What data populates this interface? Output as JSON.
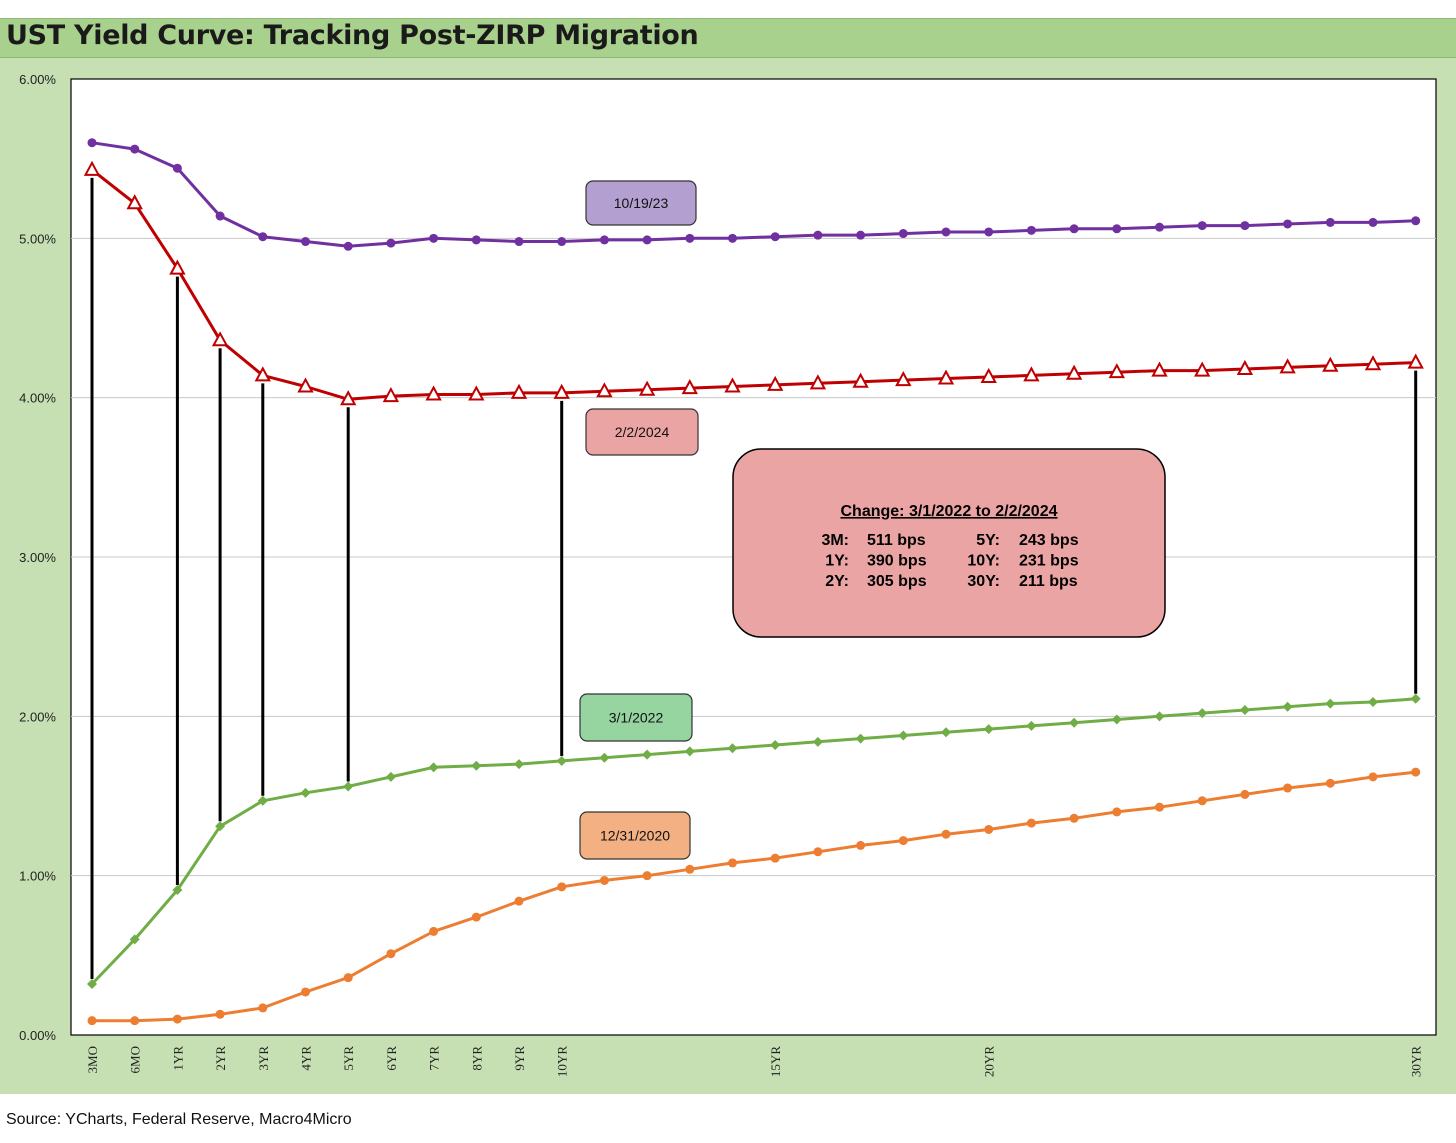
{
  "title": "UST Yield Curve: Tracking Post-ZIRP Migration",
  "source": "Source: YCharts, Federal Reserve, Macro4Micro",
  "chart_data": {
    "type": "line",
    "title": "UST Yield Curve: Tracking Post-ZIRP Migration",
    "xlabel": "",
    "ylabel": "",
    "ylim": [
      0,
      6
    ],
    "y_ticks": [
      "0.00%",
      "1.00%",
      "2.00%",
      "3.00%",
      "4.00%",
      "5.00%",
      "6.00%"
    ],
    "x_tick_labels": [
      {
        "index": 0,
        "label": "3MO"
      },
      {
        "index": 1,
        "label": "6MO"
      },
      {
        "index": 2,
        "label": "1YR"
      },
      {
        "index": 3,
        "label": "2YR"
      },
      {
        "index": 4,
        "label": "3YR"
      },
      {
        "index": 5,
        "label": "4YR"
      },
      {
        "index": 6,
        "label": "5YR"
      },
      {
        "index": 7,
        "label": "6YR"
      },
      {
        "index": 8,
        "label": "7YR"
      },
      {
        "index": 9,
        "label": "8YR"
      },
      {
        "index": 10,
        "label": "9YR"
      },
      {
        "index": 11,
        "label": "10YR"
      },
      {
        "index": 16,
        "label": "15YR"
      },
      {
        "index": 21,
        "label": "20YR"
      },
      {
        "index": 31,
        "label": "30YR"
      }
    ],
    "grid": true,
    "series": [
      {
        "name": "10/19/23",
        "color": "#7030a0",
        "marker": "circle",
        "values": [
          5.6,
          5.56,
          5.44,
          5.14,
          5.01,
          4.98,
          4.95,
          4.97,
          5.0,
          4.99,
          4.98,
          4.98,
          4.99,
          4.99,
          5.0,
          5.0,
          5.01,
          5.02,
          5.02,
          5.03,
          5.04,
          5.04,
          5.05,
          5.06,
          5.06,
          5.07,
          5.08,
          5.08,
          5.09,
          5.1,
          5.1,
          5.11
        ]
      },
      {
        "name": "2/2/2024",
        "color": "#c00000",
        "marker": "triangle",
        "values": [
          5.43,
          5.22,
          4.81,
          4.36,
          4.14,
          4.07,
          3.99,
          4.01,
          4.02,
          4.02,
          4.03,
          4.03,
          4.04,
          4.05,
          4.06,
          4.07,
          4.08,
          4.09,
          4.1,
          4.11,
          4.12,
          4.13,
          4.14,
          4.15,
          4.16,
          4.17,
          4.17,
          4.18,
          4.19,
          4.2,
          4.21,
          4.22
        ]
      },
      {
        "name": "3/1/2022",
        "color": "#70ad47",
        "marker": "diamond",
        "values": [
          0.32,
          0.6,
          0.91,
          1.31,
          1.47,
          1.52,
          1.56,
          1.62,
          1.68,
          1.69,
          1.7,
          1.72,
          1.74,
          1.76,
          1.78,
          1.8,
          1.82,
          1.84,
          1.86,
          1.88,
          1.9,
          1.92,
          1.94,
          1.96,
          1.98,
          2.0,
          2.02,
          2.04,
          2.06,
          2.08,
          2.09,
          2.11
        ]
      },
      {
        "name": "12/31/2020",
        "color": "#ed7d31",
        "marker": "circle",
        "values": [
          0.09,
          0.09,
          0.1,
          0.13,
          0.17,
          0.27,
          0.36,
          0.51,
          0.65,
          0.74,
          0.84,
          0.93,
          0.97,
          1.0,
          1.04,
          1.08,
          1.11,
          1.15,
          1.19,
          1.22,
          1.26,
          1.29,
          1.33,
          1.36,
          1.4,
          1.43,
          1.47,
          1.51,
          1.55,
          1.58,
          1.62,
          1.65
        ]
      }
    ],
    "change_lines": {
      "from": "3/1/2022",
      "to": "2/2/2024",
      "indices": [
        0,
        2,
        3,
        4,
        6,
        11,
        31
      ]
    },
    "annotations": [
      {
        "text": "10/19/23",
        "fill": "#b4a0d0",
        "border": "#333333"
      },
      {
        "text": "2/2/2024",
        "fill": "#eba4a4",
        "border": "#333333"
      },
      {
        "text": "3/1/2022",
        "fill": "#96d4a0",
        "border": "#333333"
      },
      {
        "text": "12/31/2020",
        "fill": "#f3b083",
        "border": "#333333"
      }
    ],
    "change_box": {
      "heading": "Change: 3/1/2022 to 2/2/2024",
      "fill": "#eba4a4",
      "rows": [
        [
          {
            "label": "3M:",
            "value": "511 bps"
          },
          {
            "label": "5Y:",
            "value": "243 bps"
          }
        ],
        [
          {
            "label": "1Y:",
            "value": "390 bps"
          },
          {
            "label": "10Y:",
            "value": "231 bps"
          }
        ],
        [
          {
            "label": "2Y:",
            "value": "305 bps"
          },
          {
            "label": "30Y:",
            "value": "211 bps"
          }
        ]
      ]
    }
  }
}
